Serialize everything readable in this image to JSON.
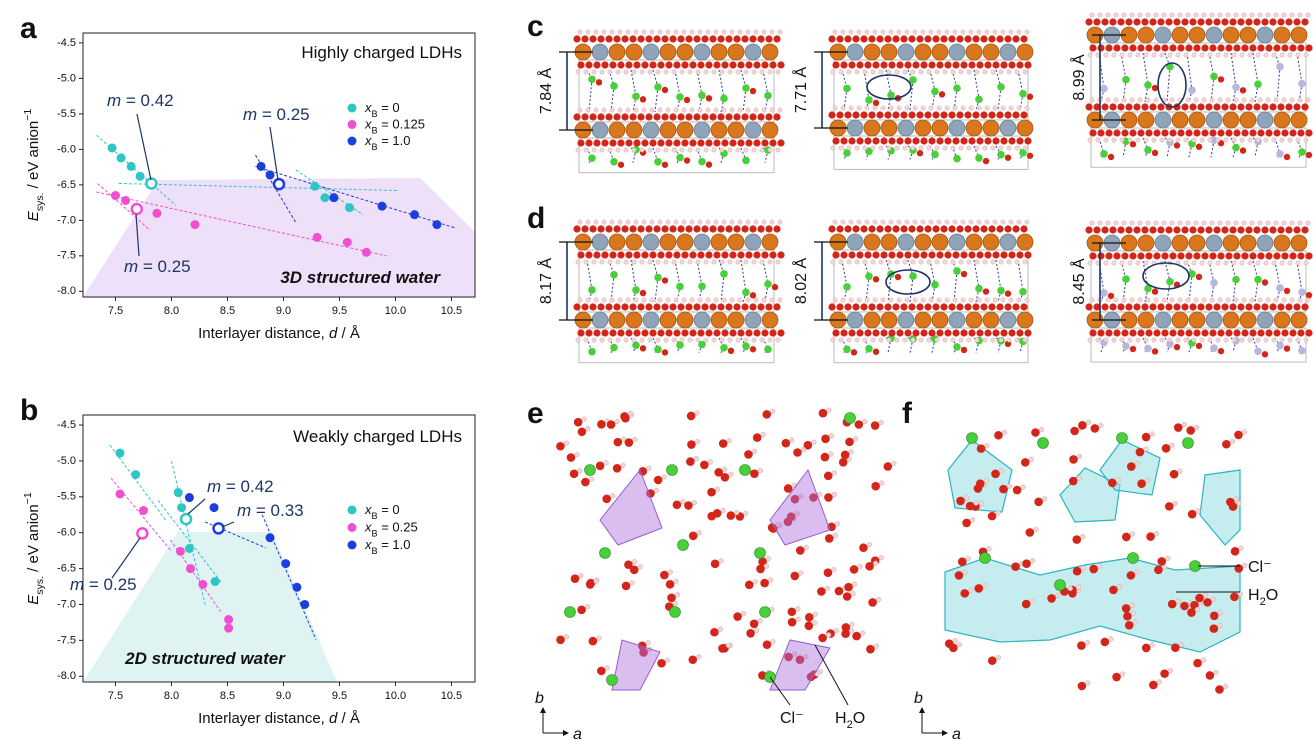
{
  "chart_data": [
    {
      "type": "scatter",
      "panel": "a",
      "title": "Highly charged LDHs",
      "region_label": "3D structured water",
      "xlabel": "Interlayer distance, d / Å",
      "ylabel": "Esys. / eV anion−1",
      "xlim": [
        7.21,
        10.71
      ],
      "ylim": [
        -8.08,
        -4.36
      ],
      "xticks": [
        7.5,
        {
          "value": 8,
          "label": "8.0"
        },
        8.5,
        {
          "value": 9,
          "label": "9.0"
        },
        9.5,
        {
          "value": 10,
          "label": "10.0"
        },
        10.5
      ],
      "yticks": [
        -4.5,
        {
          "value": -5,
          "label": "-5.0"
        },
        -5.5,
        {
          "value": -6,
          "label": "-6.0"
        },
        -6.5,
        {
          "value": -7,
          "label": "-7.0"
        },
        -7.5,
        {
          "value": -8,
          "label": "-8.0"
        }
      ],
      "series": [
        {
          "name": "xB = 0",
          "color": "#2ec5c5",
          "x": [
            7.47,
            7.55,
            7.64,
            7.72,
            7.82,
            9.28,
            9.37,
            9.59
          ],
          "y": [
            -5.98,
            -6.12,
            -6.24,
            -6.38,
            -6.48,
            -6.52,
            -6.68,
            -6.82
          ],
          "hollow": [
            4
          ]
        },
        {
          "name": "xB = 0.125",
          "color": "#f04fcf",
          "x": [
            7.5,
            7.59,
            7.69,
            7.87,
            8.21,
            9.3,
            9.57,
            9.74
          ],
          "y": [
            -6.65,
            -6.72,
            -6.84,
            -6.9,
            -7.06,
            -7.24,
            -7.31,
            -7.45
          ],
          "hollow": [
            2
          ]
        },
        {
          "name": "xB = 1.0",
          "color": "#1b3fdc",
          "x": [
            8.8,
            8.88,
            8.96,
            9.45,
            9.88,
            10.17,
            10.37
          ],
          "y": [
            -6.24,
            -6.36,
            -6.49,
            -6.68,
            -6.8,
            -6.92,
            -7.06
          ],
          "hollow": [
            2
          ]
        }
      ],
      "fits": [
        {
          "color": "#2ec5c5",
          "x": [
            7.33,
            8.04
          ],
          "y": [
            -5.8,
            -6.79
          ]
        },
        {
          "color": "#2ec5c5",
          "x": [
            7.53,
            10.03
          ],
          "y": [
            -6.48,
            -6.58
          ]
        },
        {
          "color": "#2ec5c5",
          "x": [
            9.11,
            9.71
          ],
          "y": [
            -6.29,
            -6.92
          ]
        },
        {
          "color": "#f04fcf",
          "x": [
            7.34,
            7.81
          ],
          "y": [
            -6.48,
            -7.14
          ]
        },
        {
          "color": "#f04fcf",
          "x": [
            7.33,
            9.92
          ],
          "y": [
            -6.6,
            -7.5
          ]
        },
        {
          "color": "#1b3fdc",
          "x": [
            8.75,
            9.11
          ],
          "y": [
            -6.08,
            -7.03
          ]
        },
        {
          "color": "#1b3fdc",
          "x": [
            8.75,
            10.54
          ],
          "y": [
            -6.24,
            -7.11
          ]
        }
      ],
      "annotations": [
        "m = 0.42",
        "m = 0.25",
        "m = 0.25"
      ]
    },
    {
      "type": "scatter",
      "panel": "b",
      "title": "Weakly charged LDHs",
      "region_label": "2D structured water",
      "xlabel": "Interlayer distance, d / Å",
      "ylabel": "Esys. / eV anion−1",
      "xlim": [
        7.21,
        10.71
      ],
      "ylim": [
        -8.08,
        -4.36
      ],
      "xticks": [
        7.5,
        {
          "value": 8,
          "label": "8.0"
        },
        8.5,
        {
          "value": 9,
          "label": "9.0"
        },
        9.5,
        {
          "value": 10,
          "label": "10.0"
        },
        10.5
      ],
      "yticks": [
        -4.5,
        {
          "value": -5,
          "label": "-5.0"
        },
        -5.5,
        {
          "value": -6,
          "label": "-6.0"
        },
        -6.5,
        {
          "value": -7,
          "label": "-7.0"
        },
        -7.5,
        {
          "value": -8,
          "label": "-8.0"
        }
      ],
      "series": [
        {
          "name": "xB = 0",
          "color": "#2ec5c5",
          "x": [
            7.54,
            7.68,
            8.06,
            8.09,
            8.13,
            8.16,
            8.39
          ],
          "y": [
            -4.89,
            -5.19,
            -5.44,
            -5.65,
            -5.81,
            -6.22,
            -6.68
          ],
          "hollow": [
            4
          ]
        },
        {
          "name": "xB = 0.25",
          "color": "#f04fcf",
          "x": [
            7.54,
            7.75,
            7.74,
            8.08,
            8.17,
            8.28,
            8.51,
            8.51
          ],
          "y": [
            -5.46,
            -5.69,
            -6.01,
            -6.26,
            -6.5,
            -6.72,
            -7.21,
            -7.33
          ],
          "hollow": [
            2
          ]
        },
        {
          "name": "xB = 1.0",
          "color": "#1b3fdc",
          "x": [
            8.16,
            8.38,
            8.42,
            8.88,
            9.02,
            9.12,
            9.19
          ],
          "y": [
            -5.51,
            -5.65,
            -5.94,
            -6.07,
            -6.43,
            -6.76,
            -7.0
          ],
          "hollow": [
            2
          ]
        }
      ],
      "fits": [
        {
          "color": "#2ec5c5",
          "x": [
            7.45,
            7.95
          ],
          "y": [
            -4.78,
            -5.83
          ]
        },
        {
          "color": "#2ec5c5",
          "x": [
            8.0,
            8.3
          ],
          "y": [
            -5.0,
            -7.0
          ]
        },
        {
          "color": "#2ec5c5",
          "x": [
            7.88,
            8.45
          ],
          "y": [
            -5.55,
            -6.7
          ]
        },
        {
          "color": "#f04fcf",
          "x": [
            7.46,
            7.99
          ],
          "y": [
            -5.24,
            -6.24
          ]
        },
        {
          "color": "#f04fcf",
          "x": [
            7.99,
            8.44
          ],
          "y": [
            -6.1,
            -7.1
          ]
        },
        {
          "color": "#1b3fdc",
          "x": [
            8.3,
            8.84
          ],
          "y": [
            -5.85,
            -6.21
          ]
        },
        {
          "color": "#1b3fdc",
          "x": [
            8.81,
            9.29
          ],
          "y": [
            -5.75,
            -7.49
          ]
        }
      ],
      "annotations": [
        "m = 0.42",
        "m = 0.33",
        "m = 0.25"
      ]
    }
  ],
  "panels": {
    "c": {
      "label": "c",
      "distances": [
        "7.84 Å",
        "7.71 Å",
        "8.99 Å"
      ]
    },
    "d": {
      "label": "d",
      "distances": [
        "8.17 Å",
        "8.02 Å",
        "8.45 Å"
      ]
    },
    "e": {
      "label": "e",
      "ion": "Cl⁻",
      "water": "H₂O",
      "axes": [
        "b",
        "a"
      ]
    },
    "f": {
      "label": "f",
      "ion": "Cl⁻",
      "water": "H₂O",
      "axes": [
        "b",
        "a"
      ]
    }
  }
}
